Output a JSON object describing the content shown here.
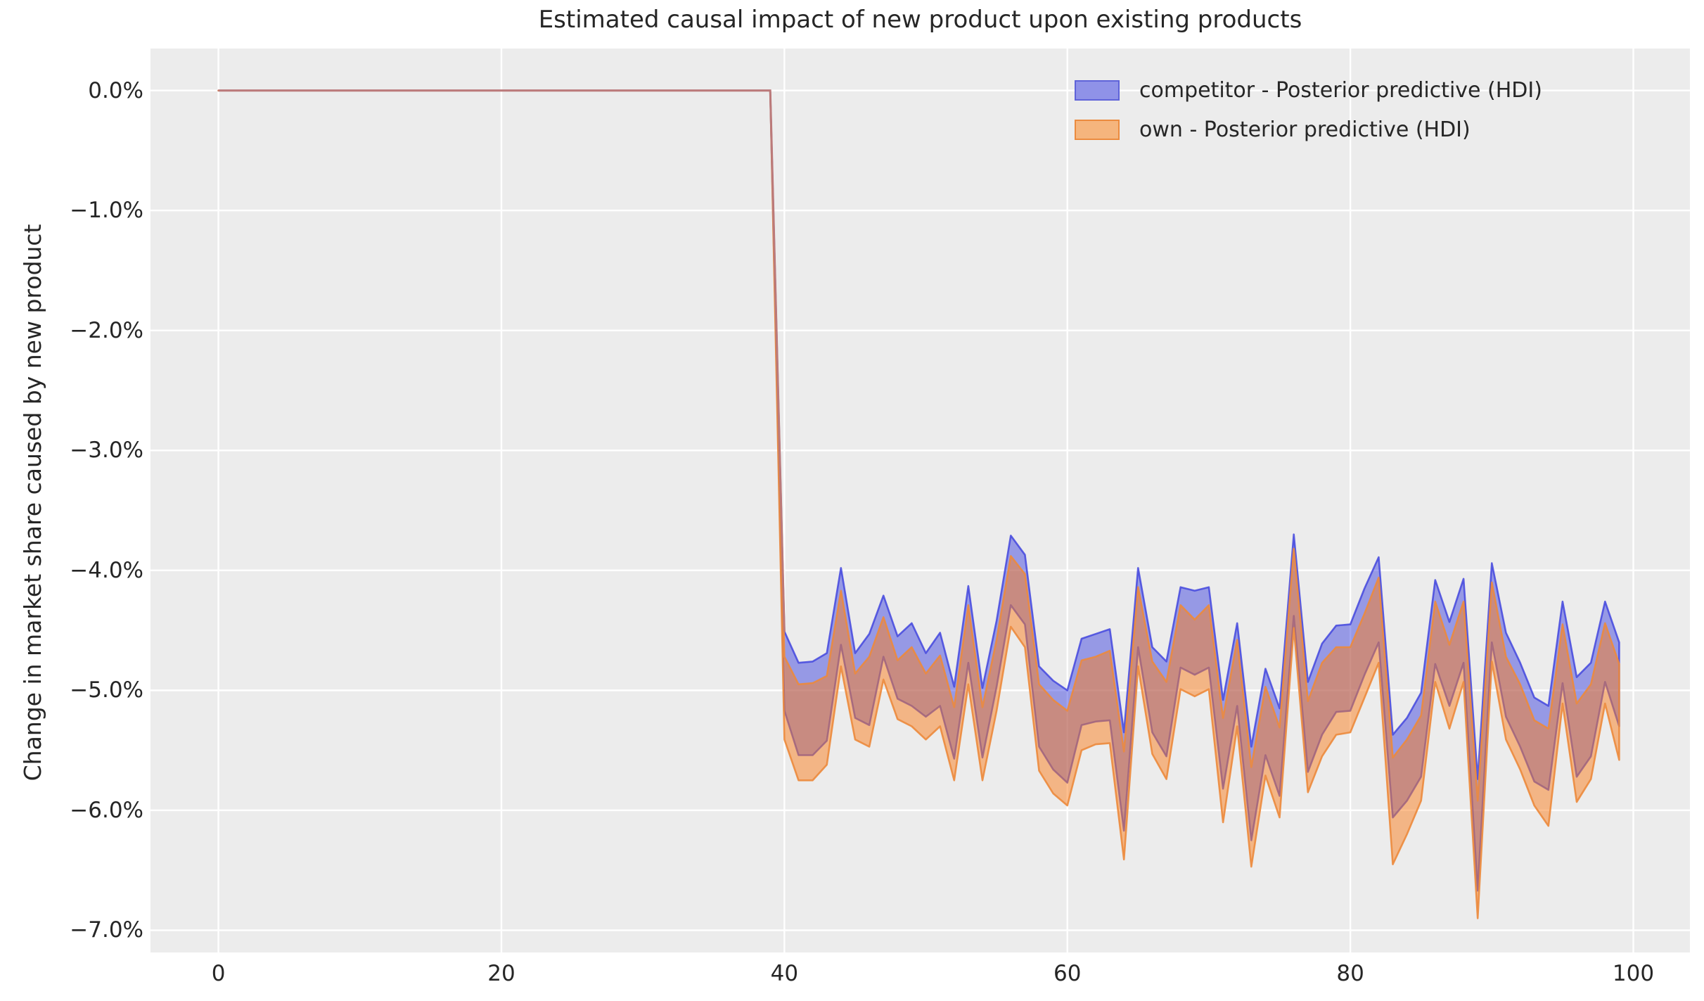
{
  "title": "Estimated causal impact of new product upon existing products",
  "ylabel": "Change in market share caused by new product",
  "legend": [
    {
      "label": "competitor - Posterior predictive (HDI)",
      "swatch_fill": "#8f92e8",
      "swatch_border": "#5f63d9"
    },
    {
      "label": "own - Posterior predictive (HDI)",
      "swatch_fill": "#f5b57d",
      "swatch_border": "#eb8b3f"
    }
  ],
  "colors": {
    "plot_background": "#ececec",
    "grid": "#ffffff",
    "text": "#262626",
    "competitor_fill": "#2f35dd",
    "competitor_fill_opacity": 0.45,
    "competitor_stroke": "#4347de",
    "own_fill": "#f97e1e",
    "own_fill_opacity": 0.5,
    "own_stroke": "#ec8a3c",
    "pre_period_line": "#bb7a7a"
  },
  "chart_data": {
    "type": "area",
    "title": "Estimated causal impact of new product upon existing products",
    "xlabel": "",
    "ylabel": "Change in market share caused by new product",
    "legend_position": "upper right",
    "grid": true,
    "xlim": [
      -4.8,
      104.0
    ],
    "ylim": [
      -7.185,
      0.35
    ],
    "x_ticks": [
      0,
      20,
      40,
      60,
      80,
      100
    ],
    "y_ticks": [
      0,
      -1,
      -2,
      -3,
      -4,
      -5,
      -6,
      -7
    ],
    "y_tick_labels": [
      "0.0%",
      "−1.0%",
      "−2.0%",
      "−3.0%",
      "−4.0%",
      "−5.0%",
      "−6.0%",
      "−7.0%"
    ],
    "pre_period": {
      "x_start": 0,
      "x_end": 39,
      "value": 0.0
    },
    "x_post": [
      40,
      41,
      42,
      43,
      44,
      45,
      46,
      47,
      48,
      49,
      50,
      51,
      52,
      53,
      54,
      55,
      56,
      57,
      58,
      59,
      60,
      61,
      62,
      63,
      64,
      65,
      66,
      67,
      68,
      69,
      70,
      71,
      72,
      73,
      74,
      75,
      76,
      77,
      78,
      79,
      80,
      81,
      82,
      83,
      84,
      85,
      86,
      87,
      88,
      89,
      90,
      91,
      92,
      93,
      94,
      95,
      96,
      97,
      98,
      99
    ],
    "series": [
      {
        "name": "competitor - Posterior predictive (HDI)",
        "upper": [
          -4.51,
          -4.77,
          -4.76,
          -4.69,
          -3.98,
          -4.69,
          -4.53,
          -4.21,
          -4.55,
          -4.44,
          -4.69,
          -4.52,
          -4.97,
          -4.13,
          -4.98,
          -4.42,
          -3.71,
          -3.87,
          -4.8,
          -4.92,
          -5.0,
          -4.57,
          -4.53,
          -4.49,
          -5.35,
          -3.98,
          -4.64,
          -4.76,
          -4.14,
          -4.17,
          -4.14,
          -5.08,
          -4.44,
          -5.47,
          -4.82,
          -5.15,
          -3.7,
          -4.93,
          -4.61,
          -4.46,
          -4.45,
          -4.15,
          -3.89,
          -5.37,
          -5.23,
          -5.02,
          -4.08,
          -4.43,
          -4.07,
          -5.74,
          -3.94,
          -4.52,
          -4.77,
          -5.06,
          -5.13,
          -4.26,
          -4.89,
          -4.77,
          -4.26,
          -4.6
        ],
        "lower": [
          -5.17,
          -5.54,
          -5.54,
          -5.42,
          -4.62,
          -5.23,
          -5.29,
          -4.72,
          -5.07,
          -5.13,
          -5.22,
          -5.13,
          -5.57,
          -4.77,
          -5.56,
          -4.97,
          -4.29,
          -4.45,
          -5.47,
          -5.66,
          -5.77,
          -5.29,
          -5.26,
          -5.25,
          -6.17,
          -4.64,
          -5.35,
          -5.55,
          -4.81,
          -4.87,
          -4.81,
          -5.82,
          -5.13,
          -6.25,
          -5.54,
          -5.88,
          -4.38,
          -5.68,
          -5.37,
          -5.18,
          -5.17,
          -4.87,
          -4.6,
          -6.06,
          -5.92,
          -5.72,
          -4.78,
          -5.13,
          -4.77,
          -6.67,
          -4.6,
          -5.22,
          -5.47,
          -5.76,
          -5.83,
          -4.94,
          -5.72,
          -5.55,
          -4.93,
          -5.3
        ]
      },
      {
        "name": "own - Posterior predictive (HDI)",
        "upper": [
          -4.72,
          -4.95,
          -4.94,
          -4.88,
          -4.17,
          -4.86,
          -4.72,
          -4.39,
          -4.75,
          -4.64,
          -4.86,
          -4.71,
          -5.14,
          -4.29,
          -5.14,
          -4.58,
          -3.88,
          -4.03,
          -4.95,
          -5.08,
          -5.17,
          -4.75,
          -4.72,
          -4.67,
          -5.51,
          -4.14,
          -4.76,
          -4.93,
          -4.29,
          -4.41,
          -4.29,
          -5.23,
          -4.58,
          -5.64,
          -4.97,
          -5.31,
          -3.82,
          -5.09,
          -4.77,
          -4.64,
          -4.64,
          -4.36,
          -4.06,
          -5.56,
          -5.41,
          -5.21,
          -4.26,
          -4.62,
          -4.26,
          -5.92,
          -4.1,
          -4.72,
          -4.95,
          -5.25,
          -5.32,
          -4.45,
          -5.11,
          -4.95,
          -4.44,
          -4.78
        ],
        "lower": [
          -5.41,
          -5.75,
          -5.75,
          -5.62,
          -4.8,
          -5.41,
          -5.47,
          -4.91,
          -5.24,
          -5.3,
          -5.41,
          -5.3,
          -5.75,
          -4.95,
          -5.75,
          -5.17,
          -4.47,
          -4.64,
          -5.67,
          -5.86,
          -5.96,
          -5.5,
          -5.45,
          -5.44,
          -6.41,
          -4.8,
          -5.53,
          -5.74,
          -4.99,
          -5.05,
          -4.99,
          -6.1,
          -5.3,
          -6.47,
          -5.71,
          -6.06,
          -4.48,
          -5.85,
          -5.55,
          -5.37,
          -5.35,
          -5.06,
          -4.77,
          -6.45,
          -6.2,
          -5.92,
          -4.93,
          -5.32,
          -4.93,
          -6.9,
          -4.76,
          -5.41,
          -5.66,
          -5.96,
          -6.13,
          -5.11,
          -5.93,
          -5.74,
          -5.11,
          -5.58
        ]
      }
    ]
  }
}
